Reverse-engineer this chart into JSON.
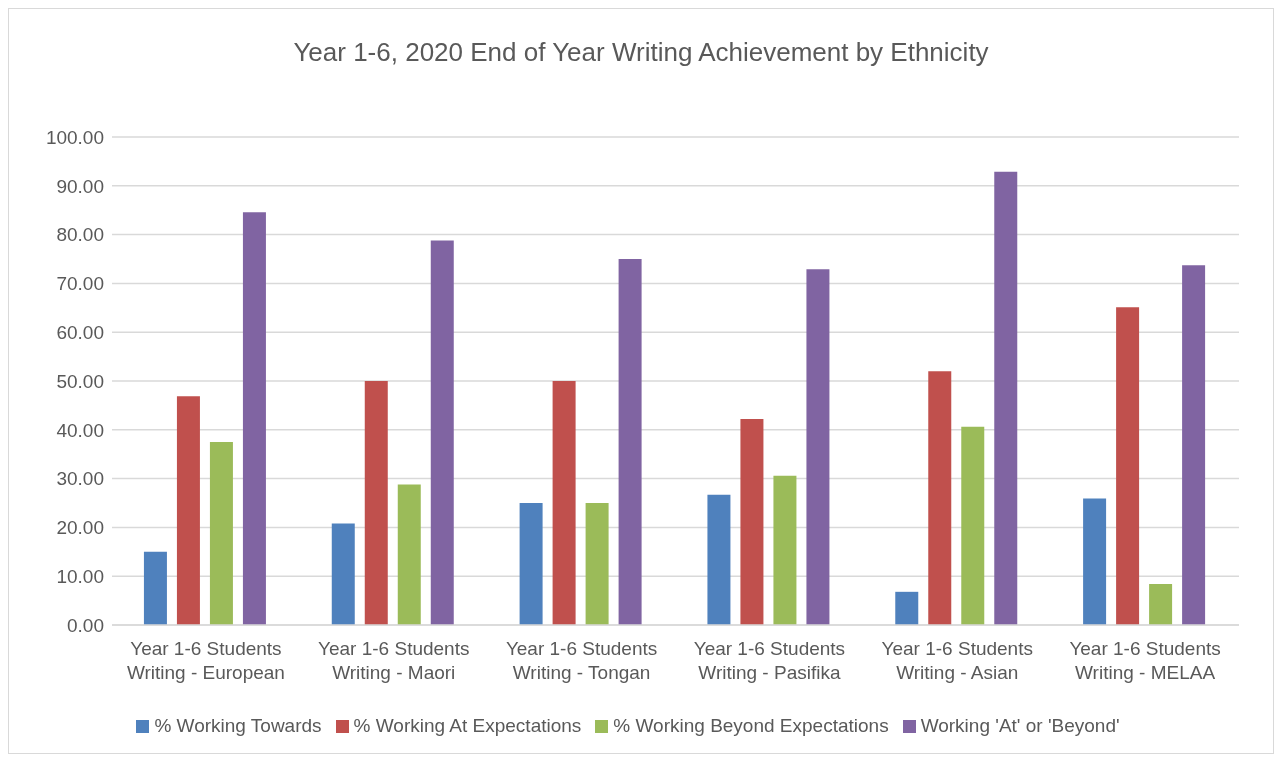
{
  "chart_data": {
    "type": "bar",
    "title": "Year 1-6, 2020 End of Year Writing Achievement by Ethnicity",
    "categories": [
      "Year 1-6 Students Writing - European",
      "Year 1-6 Students Writing - Maori",
      "Year 1-6 Students Writing - Tongan",
      "Year 1-6 Students Writing - Pasifika",
      "Year 1-6 Students Writing - Asian",
      "Year 1-6 Students Writing - MELAA"
    ],
    "series": [
      {
        "name": "% Working Towards",
        "color": "#4f81bd",
        "values": [
          15.0,
          20.8,
          25.0,
          26.7,
          6.8,
          25.9
        ]
      },
      {
        "name": "% Working At Expectations",
        "color": "#c0504d",
        "values": [
          46.9,
          50.0,
          50.0,
          42.2,
          52.0,
          65.1
        ]
      },
      {
        "name": "% Working Beyond Expectations",
        "color": "#9bbb59",
        "values": [
          37.5,
          28.8,
          25.0,
          30.6,
          40.6,
          8.4
        ]
      },
      {
        "name": "Working 'At' or 'Beyond'",
        "color": "#8064a2",
        "values": [
          84.6,
          78.8,
          75.0,
          72.9,
          92.9,
          73.7
        ]
      }
    ],
    "ylim": [
      0,
      100
    ],
    "yticks": [
      {
        "value": 0,
        "label": "0.00"
      },
      {
        "value": 10,
        "label": "10.00"
      },
      {
        "value": 20,
        "label": "20.00"
      },
      {
        "value": 30,
        "label": "30.00"
      },
      {
        "value": 40,
        "label": "40.00"
      },
      {
        "value": 50,
        "label": "50.00"
      },
      {
        "value": 60,
        "label": "60.00"
      },
      {
        "value": 70,
        "label": "70.00"
      },
      {
        "value": 80,
        "label": "80.00"
      },
      {
        "value": 90,
        "label": "90.00"
      },
      {
        "value": 100,
        "label": "100.00"
      }
    ],
    "grid": "y",
    "legend": "bottom"
  }
}
